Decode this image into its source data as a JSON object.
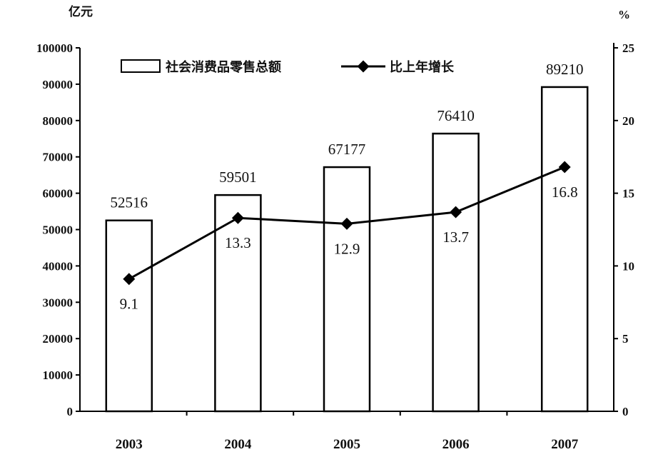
{
  "chart_data": {
    "type": "bar",
    "categories": [
      "2003",
      "2004",
      "2005",
      "2006",
      "2007"
    ],
    "series": [
      {
        "name": "社会消费品零售总额",
        "type": "bar",
        "axis": "left",
        "values": [
          52516,
          59501,
          67177,
          76410,
          89210
        ],
        "value_labels": [
          "52516",
          "59501",
          "67177",
          "76410",
          "89210"
        ]
      },
      {
        "name": "比上年增长",
        "type": "line",
        "axis": "right",
        "values": [
          9.1,
          13.3,
          12.9,
          13.7,
          16.8
        ],
        "value_labels": [
          "9.1",
          "13.3",
          "12.9",
          "13.7",
          "16.8"
        ]
      }
    ],
    "y_left": {
      "unit": "亿元",
      "ylim": [
        0,
        100000
      ],
      "ticks": [
        "0",
        "10000",
        "20000",
        "30000",
        "40000",
        "50000",
        "60000",
        "70000",
        "80000",
        "90000",
        "100000"
      ]
    },
    "y_right": {
      "unit": "%",
      "ylim": [
        0,
        25
      ],
      "ticks": [
        "0",
        "5",
        "10",
        "15",
        "20",
        "25"
      ]
    },
    "legend": {
      "position": "top",
      "items": [
        "社会消费品零售总额",
        "比上年增长"
      ]
    },
    "grid": false
  }
}
